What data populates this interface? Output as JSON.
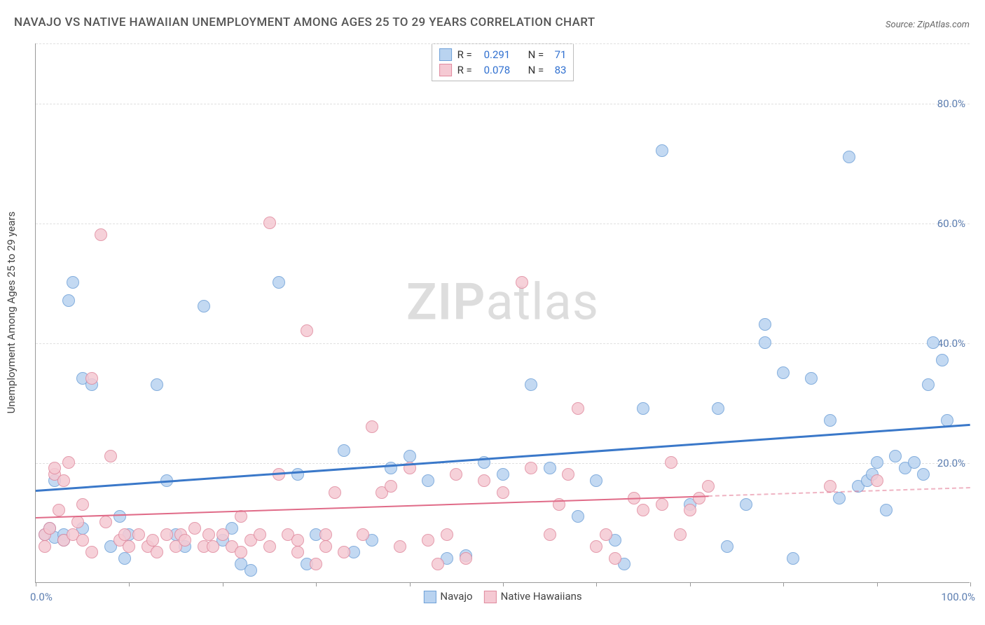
{
  "title": "NAVAJO VS NATIVE HAWAIIAN UNEMPLOYMENT AMONG AGES 25 TO 29 YEARS CORRELATION CHART",
  "source_label": "Source: ZipAtlas.com",
  "ylabel": "Unemployment Among Ages 25 to 29 years",
  "watermark_bold": "ZIP",
  "watermark_rest": "atlas",
  "chart": {
    "type": "scatter",
    "background_color": "#ffffff",
    "grid_color": "#e0e0e0",
    "axis_color": "#999999",
    "xlim": [
      0,
      100
    ],
    "ylim": [
      0,
      90
    ],
    "yticks": [
      {
        "v": 20,
        "label": "20.0%"
      },
      {
        "v": 40,
        "label": "40.0%"
      },
      {
        "v": 60,
        "label": "60.0%"
      },
      {
        "v": 80,
        "label": "80.0%"
      }
    ],
    "xtick_positions": [
      0,
      10,
      20,
      30,
      40,
      50,
      60,
      70,
      80,
      90,
      100
    ],
    "xtick_labels": [
      {
        "v": 0,
        "label": "0.0%"
      },
      {
        "v": 100,
        "label": "100.0%"
      }
    ],
    "xtick_label_color": "#5b7db0",
    "ytick_label_color": "#5b7db0",
    "label_fontsize": 15,
    "marker_radius": 9,
    "marker_border": 1.5,
    "series": [
      {
        "name": "Navajo",
        "fill": "#b9d3f0",
        "stroke": "#6fa1d8",
        "trend": {
          "y0": 15.5,
          "y100": 26.5,
          "width": 3,
          "color": "#3a78c9",
          "solid_until": 100
        },
        "R": "0.291",
        "N": "71",
        "points": [
          [
            1,
            8
          ],
          [
            1.5,
            9
          ],
          [
            2,
            7.5
          ],
          [
            2,
            17
          ],
          [
            3,
            8
          ],
          [
            3,
            7
          ],
          [
            3.5,
            47
          ],
          [
            4,
            50
          ],
          [
            5,
            9
          ],
          [
            5,
            34
          ],
          [
            6,
            33
          ],
          [
            8,
            6
          ],
          [
            9,
            11
          ],
          [
            9.5,
            4
          ],
          [
            10,
            8
          ],
          [
            13,
            33
          ],
          [
            14,
            17
          ],
          [
            15,
            8
          ],
          [
            16,
            6
          ],
          [
            18,
            46
          ],
          [
            20,
            7
          ],
          [
            21,
            9
          ],
          [
            22,
            3
          ],
          [
            23,
            2
          ],
          [
            26,
            50
          ],
          [
            28,
            18
          ],
          [
            29,
            3
          ],
          [
            30,
            8
          ],
          [
            33,
            22
          ],
          [
            34,
            5
          ],
          [
            36,
            7
          ],
          [
            38,
            19
          ],
          [
            40,
            21
          ],
          [
            42,
            17
          ],
          [
            44,
            4
          ],
          [
            46,
            4.5
          ],
          [
            48,
            20
          ],
          [
            50,
            18
          ],
          [
            53,
            33
          ],
          [
            55,
            19
          ],
          [
            58,
            11
          ],
          [
            60,
            17
          ],
          [
            62,
            7
          ],
          [
            63,
            3
          ],
          [
            65,
            29
          ],
          [
            67,
            72
          ],
          [
            70,
            13
          ],
          [
            73,
            29
          ],
          [
            74,
            6
          ],
          [
            76,
            13
          ],
          [
            78,
            40
          ],
          [
            78,
            43
          ],
          [
            80,
            35
          ],
          [
            81,
            4
          ],
          [
            83,
            34
          ],
          [
            85,
            27
          ],
          [
            86,
            14
          ],
          [
            87,
            71
          ],
          [
            88,
            16
          ],
          [
            89,
            17
          ],
          [
            89.5,
            18
          ],
          [
            90,
            20
          ],
          [
            91,
            12
          ],
          [
            92,
            21
          ],
          [
            93,
            19
          ],
          [
            94,
            20
          ],
          [
            95,
            18
          ],
          [
            95.5,
            33
          ],
          [
            96,
            40
          ],
          [
            97,
            37
          ],
          [
            97.5,
            27
          ]
        ]
      },
      {
        "name": "Native Hawaiians",
        "fill": "#f5c9d3",
        "stroke": "#e08a9e",
        "trend": {
          "y0": 11,
          "y100": 16,
          "width": 2,
          "color": "#e06b88",
          "solid_until": 72
        },
        "R": "0.078",
        "N": "83",
        "points": [
          [
            1,
            6
          ],
          [
            1,
            8
          ],
          [
            1.5,
            9
          ],
          [
            2,
            18
          ],
          [
            2,
            19
          ],
          [
            2.5,
            12
          ],
          [
            3,
            17
          ],
          [
            3,
            7
          ],
          [
            3.5,
            20
          ],
          [
            4,
            8
          ],
          [
            4.5,
            10
          ],
          [
            5,
            13
          ],
          [
            5,
            7
          ],
          [
            6,
            34
          ],
          [
            6,
            5
          ],
          [
            7,
            58
          ],
          [
            7.5,
            10
          ],
          [
            8,
            21
          ],
          [
            9,
            7
          ],
          [
            9.5,
            8
          ],
          [
            10,
            6
          ],
          [
            11,
            8
          ],
          [
            12,
            6
          ],
          [
            12.5,
            7
          ],
          [
            13,
            5
          ],
          [
            14,
            8
          ],
          [
            15,
            6
          ],
          [
            15.5,
            8
          ],
          [
            16,
            7
          ],
          [
            17,
            9
          ],
          [
            18,
            6
          ],
          [
            18.5,
            8
          ],
          [
            19,
            6
          ],
          [
            20,
            8
          ],
          [
            21,
            6
          ],
          [
            22,
            5
          ],
          [
            22,
            11
          ],
          [
            23,
            7
          ],
          [
            24,
            8
          ],
          [
            25,
            6
          ],
          [
            25,
            60
          ],
          [
            26,
            18
          ],
          [
            27,
            8
          ],
          [
            28,
            5
          ],
          [
            28,
            7
          ],
          [
            29,
            42
          ],
          [
            30,
            3
          ],
          [
            31,
            6
          ],
          [
            31,
            8
          ],
          [
            32,
            15
          ],
          [
            33,
            5
          ],
          [
            35,
            8
          ],
          [
            36,
            26
          ],
          [
            37,
            15
          ],
          [
            38,
            16
          ],
          [
            39,
            6
          ],
          [
            40,
            19
          ],
          [
            42,
            7
          ],
          [
            43,
            3
          ],
          [
            44,
            8
          ],
          [
            45,
            18
          ],
          [
            46,
            4
          ],
          [
            48,
            17
          ],
          [
            50,
            15
          ],
          [
            52,
            50
          ],
          [
            53,
            19
          ],
          [
            55,
            8
          ],
          [
            56,
            13
          ],
          [
            57,
            18
          ],
          [
            58,
            29
          ],
          [
            60,
            6
          ],
          [
            61,
            8
          ],
          [
            62,
            4
          ],
          [
            64,
            14
          ],
          [
            65,
            12
          ],
          [
            67,
            13
          ],
          [
            68,
            20
          ],
          [
            69,
            8
          ],
          [
            70,
            12
          ],
          [
            71,
            14
          ],
          [
            72,
            16
          ],
          [
            85,
            16
          ],
          [
            90,
            17
          ]
        ]
      }
    ],
    "legend_top": {
      "rows": [
        {
          "sq_fill": "#b9d3f0",
          "sq_stroke": "#6fa1d8",
          "r_label": "R =",
          "r_val": "0.291",
          "n_label": "N =",
          "n_val": "71"
        },
        {
          "sq_fill": "#f5c9d3",
          "sq_stroke": "#e08a9e",
          "r_label": "R =",
          "r_val": "0.078",
          "n_label": "N =",
          "n_val": "83"
        }
      ]
    },
    "legend_bottom": [
      {
        "sq_fill": "#b9d3f0",
        "sq_stroke": "#6fa1d8",
        "label": "Navajo"
      },
      {
        "sq_fill": "#f5c9d3",
        "sq_stroke": "#e08a9e",
        "label": "Native Hawaiians"
      }
    ]
  }
}
